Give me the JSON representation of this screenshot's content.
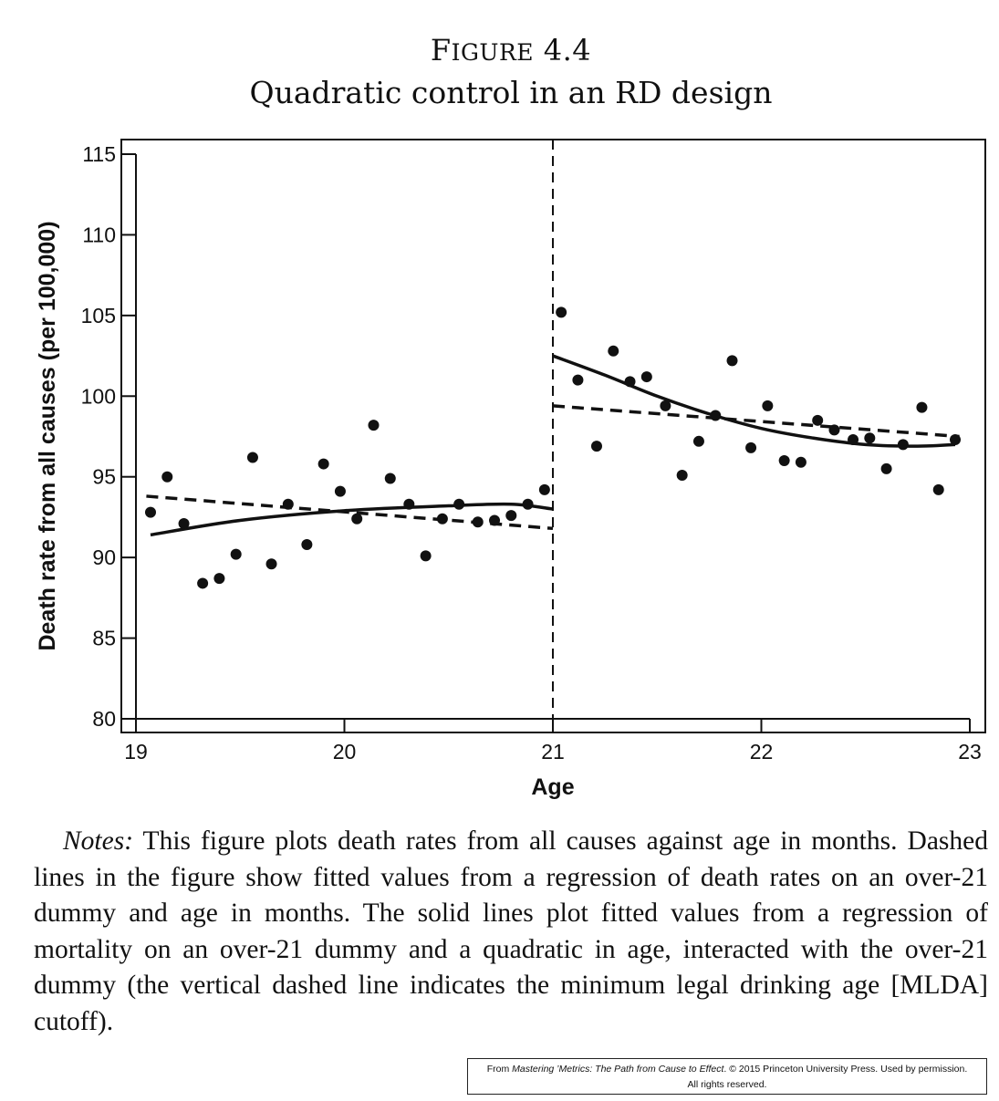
{
  "figure": {
    "label_cap": "F",
    "label_rest": "IGURE",
    "label_number": "4.4",
    "subtitle": "Quadratic control in an RD design"
  },
  "chart_data": {
    "type": "scatter",
    "xlabel": "Age",
    "ylabel": "Death rate from all causes (per 100,000)",
    "xlim": [
      19,
      23
    ],
    "ylim": [
      80,
      115
    ],
    "xticks": [
      "19",
      "20",
      "21",
      "22",
      "23"
    ],
    "yticks": [
      "80",
      "85",
      "90",
      "95",
      "100",
      "105",
      "110",
      "115"
    ],
    "cutoff": 21,
    "grid": false,
    "points": [
      {
        "x": 19.07,
        "y": 92.8
      },
      {
        "x": 19.15,
        "y": 95.0
      },
      {
        "x": 19.23,
        "y": 92.1
      },
      {
        "x": 19.32,
        "y": 88.4
      },
      {
        "x": 19.4,
        "y": 88.7
      },
      {
        "x": 19.48,
        "y": 90.2
      },
      {
        "x": 19.56,
        "y": 96.2
      },
      {
        "x": 19.65,
        "y": 89.6
      },
      {
        "x": 19.73,
        "y": 93.3
      },
      {
        "x": 19.82,
        "y": 90.8
      },
      {
        "x": 19.9,
        "y": 95.8
      },
      {
        "x": 19.98,
        "y": 94.1
      },
      {
        "x": 20.06,
        "y": 92.4
      },
      {
        "x": 20.14,
        "y": 98.2
      },
      {
        "x": 20.22,
        "y": 94.9
      },
      {
        "x": 20.31,
        "y": 93.3
      },
      {
        "x": 20.39,
        "y": 90.1
      },
      {
        "x": 20.47,
        "y": 92.4
      },
      {
        "x": 20.55,
        "y": 93.3
      },
      {
        "x": 20.64,
        "y": 92.2
      },
      {
        "x": 20.72,
        "y": 92.3
      },
      {
        "x": 20.8,
        "y": 92.6
      },
      {
        "x": 20.88,
        "y": 93.3
      },
      {
        "x": 20.96,
        "y": 94.2
      },
      {
        "x": 21.04,
        "y": 105.2
      },
      {
        "x": 21.12,
        "y": 101.0
      },
      {
        "x": 21.21,
        "y": 96.9
      },
      {
        "x": 21.29,
        "y": 102.8
      },
      {
        "x": 21.37,
        "y": 100.9
      },
      {
        "x": 21.45,
        "y": 101.2
      },
      {
        "x": 21.54,
        "y": 99.4
      },
      {
        "x": 21.62,
        "y": 95.1
      },
      {
        "x": 21.7,
        "y": 97.2
      },
      {
        "x": 21.78,
        "y": 98.8
      },
      {
        "x": 21.86,
        "y": 102.2
      },
      {
        "x": 21.95,
        "y": 96.8
      },
      {
        "x": 22.03,
        "y": 99.4
      },
      {
        "x": 22.11,
        "y": 96.0
      },
      {
        "x": 22.19,
        "y": 95.9
      },
      {
        "x": 22.27,
        "y": 98.5
      },
      {
        "x": 22.35,
        "y": 97.9
      },
      {
        "x": 22.44,
        "y": 97.3
      },
      {
        "x": 22.52,
        "y": 97.4
      },
      {
        "x": 22.6,
        "y": 95.5
      },
      {
        "x": 22.68,
        "y": 97.0
      },
      {
        "x": 22.77,
        "y": 99.3
      },
      {
        "x": 22.85,
        "y": 94.2
      },
      {
        "x": 22.93,
        "y": 97.3
      }
    ],
    "linear_fit": [
      {
        "segment": "below-21",
        "from": [
          19.05,
          93.8
        ],
        "to": [
          21.0,
          91.8
        ]
      },
      {
        "segment": "above-21",
        "from": [
          21.0,
          99.4
        ],
        "to": [
          22.95,
          97.5
        ]
      }
    ],
    "quadratic_fit": [
      {
        "segment": "below-21",
        "points": [
          [
            19.07,
            91.4
          ],
          [
            19.5,
            92.3
          ],
          [
            20.0,
            92.9
          ],
          [
            20.5,
            93.2
          ],
          [
            20.8,
            93.3
          ],
          [
            21.0,
            93.0
          ]
        ]
      },
      {
        "segment": "above-21",
        "points": [
          [
            21.0,
            102.5
          ],
          [
            21.25,
            101.3
          ],
          [
            21.5,
            100.0
          ],
          [
            21.75,
            98.9
          ],
          [
            22.0,
            98.0
          ],
          [
            22.25,
            97.4
          ],
          [
            22.5,
            97.0
          ],
          [
            22.75,
            96.9
          ],
          [
            22.93,
            97.0
          ]
        ]
      }
    ]
  },
  "notes": {
    "lead": "Notes:",
    "text": " This figure plots death rates from all causes against age in months. Dashed lines in the figure show fitted values from a regression of death rates on an over-21 dummy and age in months. The solid lines plot fitted values from a regression of mortality on an over-21 dummy and a quadratic in age, interacted with the over-21 dummy (the vertical dashed line indicates the minimum legal drinking age [MLDA] cutoff)."
  },
  "credit": {
    "prefix": "From ",
    "book": "Mastering ’Metrics: The Path from Cause to Effect",
    "suffix": ". © 2015 Princeton University Press. Used by permission.",
    "line2": "All rights reserved."
  }
}
